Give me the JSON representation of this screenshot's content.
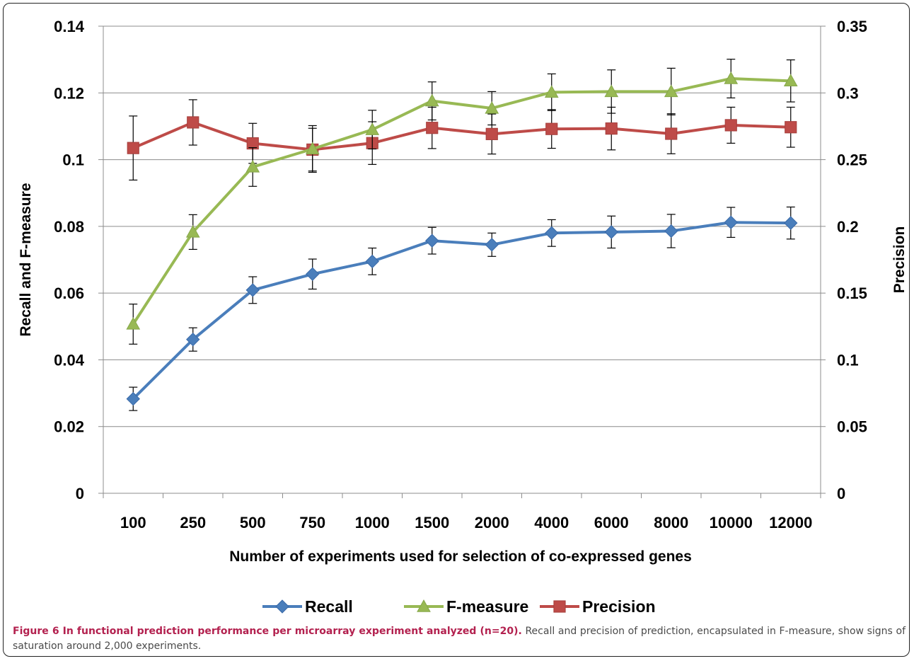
{
  "chart_data": {
    "type": "line",
    "categories": [
      "100",
      "250",
      "500",
      "750",
      "1000",
      "1500",
      "2000",
      "4000",
      "6000",
      "8000",
      "10000",
      "12000"
    ],
    "xlabel": "Number of experiments used for selection of co-expressed genes",
    "ylabel": "Recall and F-measure",
    "y2label": "Precision",
    "ylim": [
      0,
      0.14
    ],
    "yticks": [
      "0",
      "0.02",
      "0.04",
      "0.06",
      "0.08",
      "0.1",
      "0.12",
      "0.14"
    ],
    "y2lim": [
      0,
      0.35
    ],
    "y2ticks": [
      "0",
      "0.05",
      "0.1",
      "0.15",
      "0.2",
      "0.25",
      "0.3",
      "0.35"
    ],
    "grid": true,
    "legend_position": "bottom",
    "series": [
      {
        "name": "Recall",
        "axis": "left",
        "color": "#4a7ebb",
        "marker": "diamond",
        "values": [
          0.0283,
          0.0461,
          0.0609,
          0.0657,
          0.0695,
          0.0757,
          0.0745,
          0.078,
          0.0783,
          0.0786,
          0.0812,
          0.081
        ],
        "errors": [
          0.0035,
          0.0035,
          0.004,
          0.0045,
          0.004,
          0.004,
          0.0035,
          0.004,
          0.0048,
          0.005,
          0.0045,
          0.0048
        ]
      },
      {
        "name": "F-measure",
        "axis": "left",
        "color": "#98b954",
        "marker": "triangle",
        "values": [
          0.0507,
          0.0783,
          0.0978,
          0.1032,
          0.109,
          0.1176,
          0.1154,
          0.1202,
          0.1204,
          0.1204,
          0.1243,
          0.1236
        ],
        "errors": [
          0.006,
          0.0052,
          0.0058,
          0.007,
          0.0058,
          0.0057,
          0.005,
          0.0055,
          0.0065,
          0.007,
          0.0058,
          0.0063
        ]
      },
      {
        "name": "Precision",
        "axis": "right",
        "color": "#be4b48",
        "marker": "square",
        "values": [
          0.2587,
          0.2779,
          0.2622,
          0.2575,
          0.2624,
          0.2738,
          0.2692,
          0.273,
          0.2733,
          0.2694,
          0.2758,
          0.2743
        ],
        "errors": [
          0.024,
          0.017,
          0.015,
          0.016,
          0.016,
          0.0155,
          0.015,
          0.0145,
          0.016,
          0.015,
          0.0135,
          0.015
        ]
      }
    ]
  },
  "caption": {
    "heading": "Figure 6 In functional prediction performance per microarray experiment analyzed (n=20).",
    "text": " Recall and precision of prediction, encapsulated in F-measure, show signs of saturation around 2,000 experiments."
  }
}
